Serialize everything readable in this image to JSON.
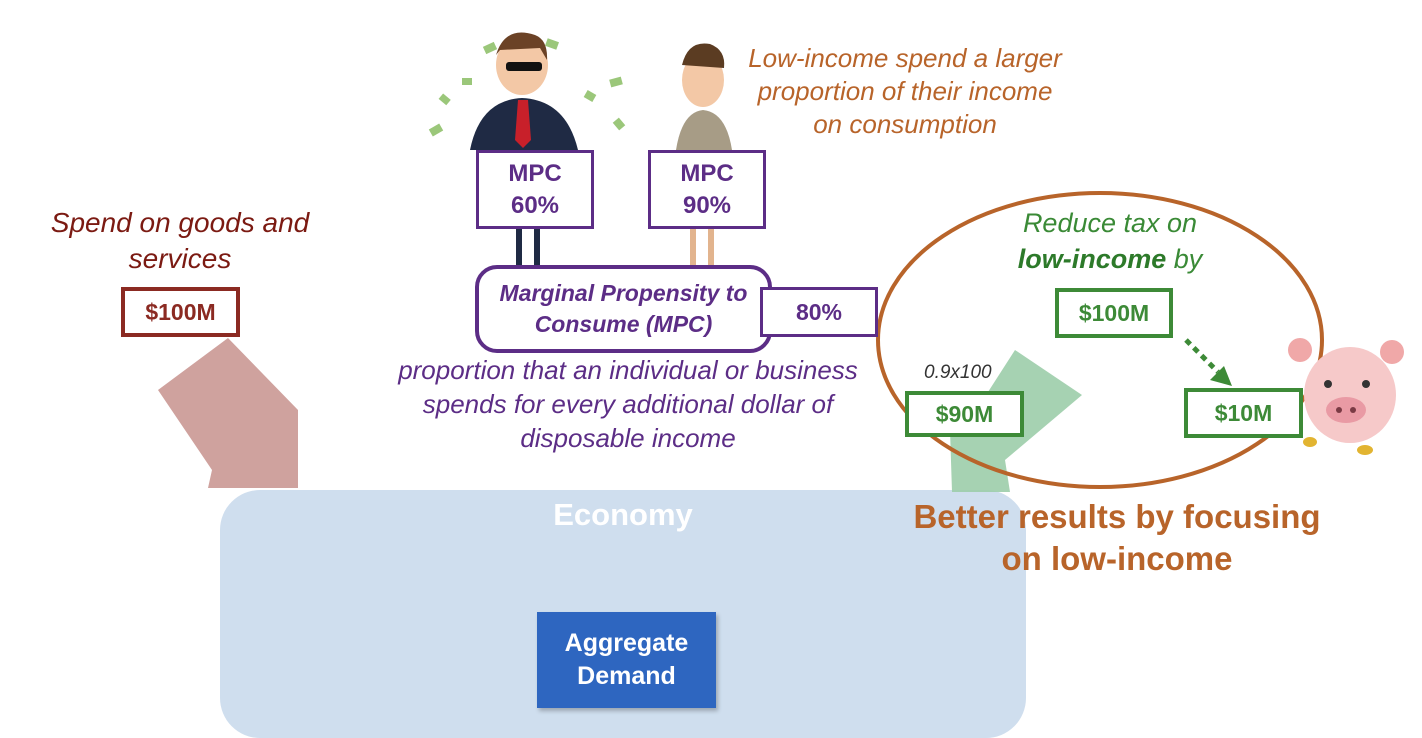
{
  "left": {
    "spend_text": "Spend on goods and services",
    "spend_amount": "$100M"
  },
  "characters": {
    "rich_mpc_label": "MPC",
    "rich_mpc_value": "60%",
    "poor_mpc_label": "MPC",
    "poor_mpc_value": "90%"
  },
  "mpc": {
    "definition_term": "Marginal Propensity to Consume (MPC)",
    "value": "80%",
    "description": "proportion that an individual or business spends for every additional dollar of disposable income"
  },
  "note_low_income": "Low-income spend a larger proportion of their income on consumption",
  "tax": {
    "reduce_prefix": "Reduce tax on",
    "target": "low-income",
    "reduce_suffix": "by",
    "amount": "$100M",
    "calc_note": "0.9x100",
    "spent": "$90M",
    "saved": "$10M"
  },
  "economy": {
    "label": "Economy",
    "aggregate_demand": "Aggregate Demand"
  },
  "conclusion": "Better results by focusing on low-income",
  "colors": {
    "economy": "#cfdeee",
    "aggregate_demand": "#2e66c0",
    "spend": "#8b2a22",
    "mpc": "#5c2d86",
    "green": "#3d8a37",
    "orange": "#b8642a"
  }
}
